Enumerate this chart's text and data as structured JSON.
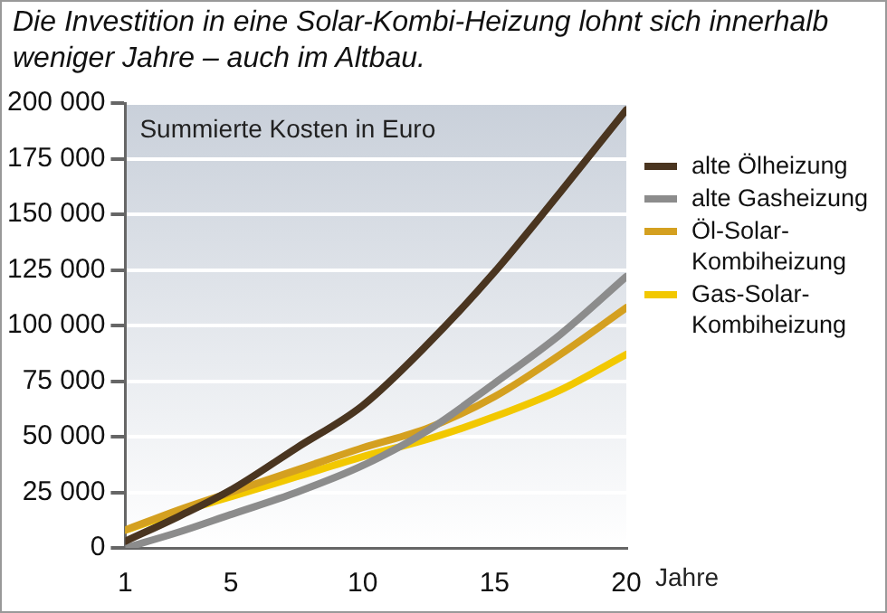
{
  "chart_data": {
    "type": "line",
    "title": "Die Investition in eine Solar-Kombi-Heizung lohnt sich innerhalb weniger Jahre – auch im Altbau.",
    "ylabel": "Summierte Kosten in Euro",
    "xlabel": "Jahre",
    "x": [
      1,
      3,
      5,
      7.5,
      10,
      12.5,
      15,
      17.5,
      20
    ],
    "series": [
      {
        "name": "alte Ölheizung",
        "color": "#4a3520",
        "values": [
          3000,
          14000,
          26000,
          45000,
          64000,
          92000,
          124000,
          160000,
          197000
        ]
      },
      {
        "name": "alte Gasheizung",
        "color": "#8c8c8c",
        "values": [
          0,
          7000,
          15000,
          25000,
          37000,
          53000,
          74000,
          96000,
          122000
        ]
      },
      {
        "name": "Öl-Solar-Kombiheizung",
        "color": "#d4a020",
        "values": [
          8000,
          17000,
          25000,
          35000,
          45000,
          54000,
          68000,
          87000,
          108000
        ]
      },
      {
        "name": "Gas-Solar-Kombiheizung",
        "color": "#f2c800",
        "values": [
          8000,
          16000,
          23000,
          32000,
          41000,
          49000,
          59000,
          71000,
          87000
        ]
      }
    ],
    "xlim": [
      1,
      20
    ],
    "xticks": [
      1,
      5,
      10,
      15,
      20
    ],
    "ylim": [
      0,
      200000
    ],
    "yticks": [
      {
        "value": 0,
        "label": "0"
      },
      {
        "value": 25000,
        "label": "25 000"
      },
      {
        "value": 50000,
        "label": "50 000"
      },
      {
        "value": 75000,
        "label": "75 000"
      },
      {
        "value": 100000,
        "label": "100 000"
      },
      {
        "value": 125000,
        "label": "125 000"
      },
      {
        "value": 150000,
        "label": "150 000"
      },
      {
        "value": 175000,
        "label": "175 000"
      },
      {
        "value": 200000,
        "label": "200 000"
      }
    ],
    "grid": "y",
    "legend": "right",
    "marker": "none",
    "line_style": "solid"
  }
}
